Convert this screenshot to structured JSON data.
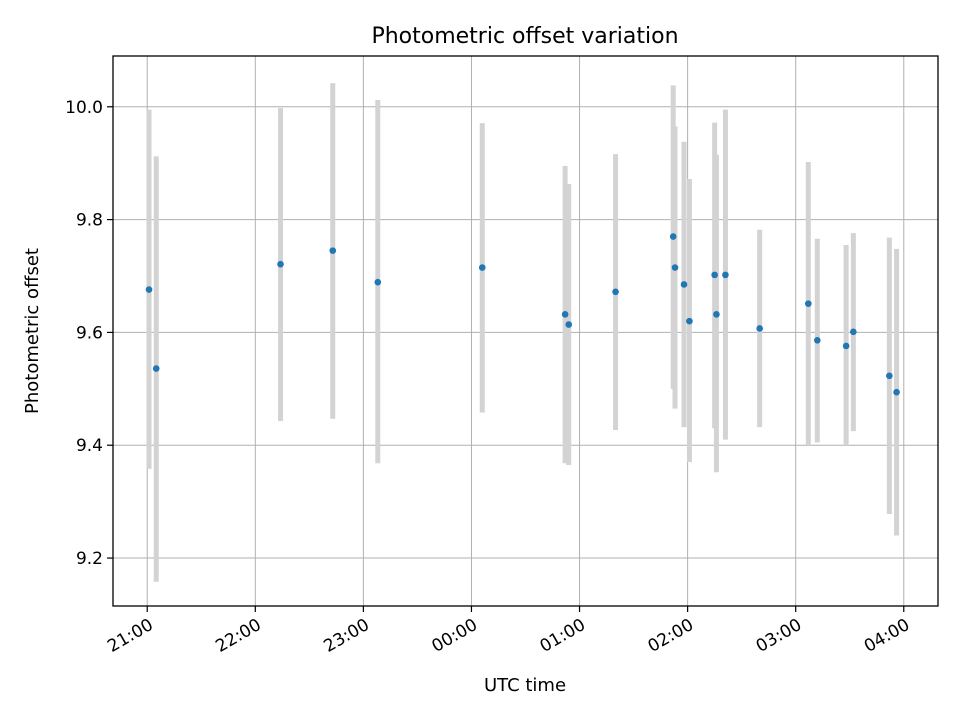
{
  "chart_data": {
    "type": "scatter",
    "title": "Photometric offset variation",
    "xlabel": "UTC time",
    "ylabel": "Photometric offset",
    "x_ticks": [
      "21:00",
      "22:00",
      "23:00",
      "00:00",
      "01:00",
      "02:00",
      "03:00",
      "04:00"
    ],
    "y_ticks": [
      "9.2",
      "9.4",
      "9.6",
      "9.8",
      "10.0"
    ],
    "xlim": [
      "20:41",
      "04:19"
    ],
    "ylim": [
      9.115,
      10.09
    ],
    "grid": true,
    "errorbar_color": "#d3d3d3",
    "point_color": "#1f77b4",
    "points": [
      {
        "t": "21:01",
        "y": 9.676,
        "ylo": 9.358,
        "yhi": 9.995
      },
      {
        "t": "21:05",
        "y": 9.536,
        "ylo": 9.158,
        "yhi": 9.912
      },
      {
        "t": "22:14",
        "y": 9.721,
        "ylo": 9.443,
        "yhi": 9.998
      },
      {
        "t": "22:43",
        "y": 9.745,
        "ylo": 9.447,
        "yhi": 10.042
      },
      {
        "t": "23:08",
        "y": 9.689,
        "ylo": 9.368,
        "yhi": 10.012
      },
      {
        "t": "00:06",
        "y": 9.715,
        "ylo": 9.458,
        "yhi": 9.971
      },
      {
        "t": "00:52",
        "y": 9.632,
        "ylo": 9.368,
        "yhi": 9.895
      },
      {
        "t": "00:54",
        "y": 9.614,
        "ylo": 9.365,
        "yhi": 9.863
      },
      {
        "t": "01:20",
        "y": 9.672,
        "ylo": 9.427,
        "yhi": 9.916
      },
      {
        "t": "01:52",
        "y": 9.77,
        "ylo": 9.5,
        "yhi": 10.038
      },
      {
        "t": "01:53",
        "y": 9.715,
        "ylo": 9.465,
        "yhi": 9.965
      },
      {
        "t": "01:58",
        "y": 9.685,
        "ylo": 9.432,
        "yhi": 9.938
      },
      {
        "t": "02:01",
        "y": 9.62,
        "ylo": 9.37,
        "yhi": 9.872
      },
      {
        "t": "02:15",
        "y": 9.702,
        "ylo": 9.43,
        "yhi": 9.972
      },
      {
        "t": "02:16",
        "y": 9.632,
        "ylo": 9.352,
        "yhi": 9.915
      },
      {
        "t": "02:21",
        "y": 9.702,
        "ylo": 9.41,
        "yhi": 9.995
      },
      {
        "t": "02:40",
        "y": 9.607,
        "ylo": 9.432,
        "yhi": 9.782
      },
      {
        "t": "03:07",
        "y": 9.651,
        "ylo": 9.4,
        "yhi": 9.902
      },
      {
        "t": "03:12",
        "y": 9.586,
        "ylo": 9.405,
        "yhi": 9.766
      },
      {
        "t": "03:28",
        "y": 9.576,
        "ylo": 9.4,
        "yhi": 9.755
      },
      {
        "t": "03:32",
        "y": 9.601,
        "ylo": 9.425,
        "yhi": 9.776
      },
      {
        "t": "03:52",
        "y": 9.523,
        "ylo": 9.278,
        "yhi": 9.768
      },
      {
        "t": "03:56",
        "y": 9.494,
        "ylo": 9.24,
        "yhi": 9.748
      }
    ]
  }
}
